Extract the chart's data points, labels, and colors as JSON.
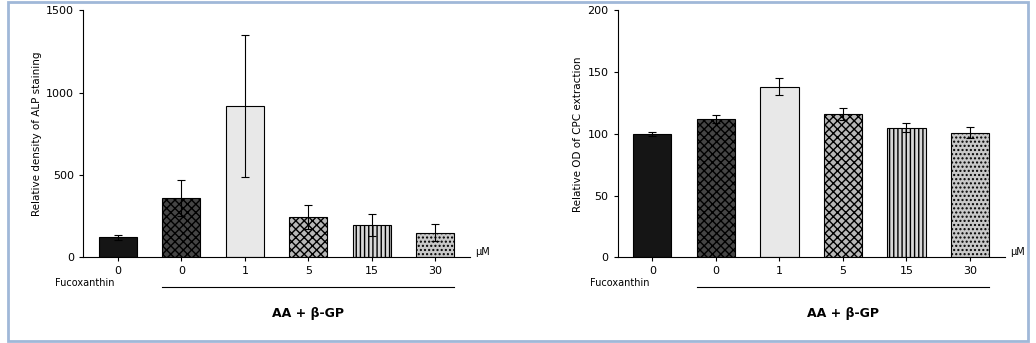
{
  "left": {
    "ylabel": "Relative density of ALP staining",
    "ylim": [
      0,
      1500
    ],
    "yticks": [
      0,
      500,
      1000,
      1500
    ],
    "xlabel_unit": "μM",
    "xlabel_fucoxanthin": "Fucoxanthin",
    "bracket_label": "AA + β-GP",
    "categories": [
      "0",
      "0",
      "1",
      "5",
      "15",
      "30"
    ],
    "values": [
      120,
      360,
      920,
      245,
      195,
      150
    ],
    "errors": [
      18,
      110,
      430,
      75,
      68,
      50
    ],
    "fc_list": [
      "#151515",
      "#4a4a4a",
      "#e8e8e8",
      "#b0b0b0",
      "#d8d8d8",
      "#c8c8c8"
    ],
    "hatch_list": [
      null,
      "xxxx",
      "====",
      "xxxx",
      "||||",
      "...."
    ]
  },
  "right": {
    "ylabel": "Relative OD of CPC extraction",
    "ylim": [
      0,
      200
    ],
    "yticks": [
      0,
      50,
      100,
      150,
      200
    ],
    "xlabel_unit": "μM",
    "xlabel_fucoxanthin": "Fucoxanthin",
    "bracket_label": "AA + β-GP",
    "categories": [
      "0",
      "0",
      "1",
      "5",
      "15",
      "30"
    ],
    "values": [
      100,
      112,
      138,
      116,
      105,
      101
    ],
    "errors": [
      1.5,
      3.5,
      7,
      4.5,
      3.5,
      4.5
    ],
    "fc_list": [
      "#151515",
      "#4a4a4a",
      "#e8e8e8",
      "#b0b0b0",
      "#d8d8d8",
      "#c8c8c8"
    ],
    "hatch_list": [
      null,
      "xxxx",
      "====",
      "xxxx",
      "||||",
      "...."
    ]
  },
  "figure_bg": "#ffffff",
  "axes_bg": "#ffffff",
  "border_color": "#a0b8d8",
  "bar_width": 0.6
}
